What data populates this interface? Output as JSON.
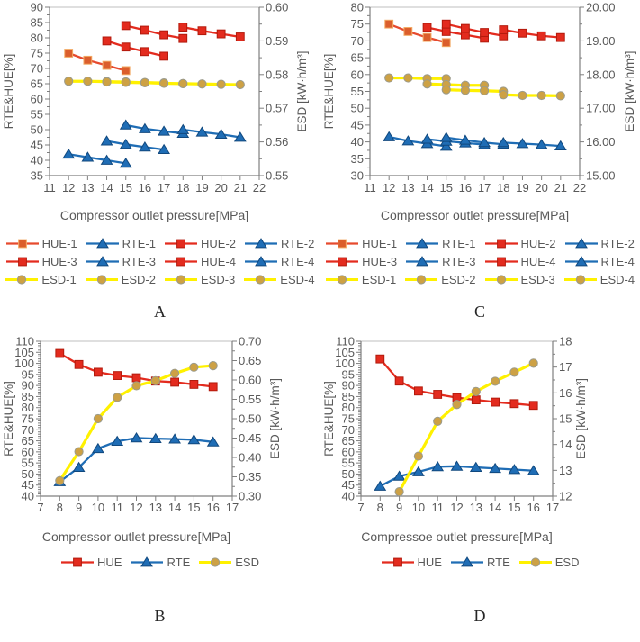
{
  "chart_data": [
    {
      "id": "A",
      "letter": "A",
      "type": "line",
      "layout": "top",
      "xlabel": "Compressor outlet pressure[MPa]",
      "left_ylabel": "RTE&HUE[%]",
      "right_ylabel": "ESD [kW·h/m³]",
      "x_axis": {
        "min": 11,
        "max": 22,
        "step": 1,
        "decimals": 0,
        "minor_divs": 1
      },
      "left_axis": {
        "min": 35,
        "max": 90,
        "step": 5,
        "decimals": 0,
        "minor_divs": 2
      },
      "right_axis": {
        "min": 0.55,
        "max": 0.6,
        "step": 0.01,
        "decimals": 2,
        "minor_divs": 2
      },
      "legend_rows": [
        [
          "HUE-1",
          "RTE-1",
          "HUE-2",
          "RTE-2"
        ],
        [
          "HUE-3",
          "RTE-3",
          "HUE-4",
          "RTE-4"
        ],
        [
          "ESD-1",
          "ESD-2",
          "ESD-3",
          "ESD-4"
        ]
      ],
      "series": [
        {
          "name": "HUE-1",
          "axis": "left",
          "style": "hue1",
          "x": [
            12,
            13,
            14,
            15
          ],
          "y": [
            75,
            72.7,
            71,
            69.3
          ]
        },
        {
          "name": "HUE-2",
          "axis": "left",
          "style": "hue",
          "x": [
            14,
            15,
            16,
            17
          ],
          "y": [
            79,
            77,
            75.5,
            74
          ]
        },
        {
          "name": "HUE-3",
          "axis": "left",
          "style": "hue",
          "x": [
            15,
            16,
            17,
            18
          ],
          "y": [
            84,
            82.5,
            81,
            79.8
          ]
        },
        {
          "name": "HUE-4",
          "axis": "left",
          "style": "hue",
          "x": [
            18,
            19,
            20,
            21
          ],
          "y": [
            83.5,
            82.3,
            81.3,
            80.3
          ]
        },
        {
          "name": "RTE-1",
          "axis": "left",
          "style": "rte",
          "x": [
            12,
            13,
            14,
            15
          ],
          "y": [
            42,
            41,
            40,
            39
          ]
        },
        {
          "name": "RTE-2",
          "axis": "left",
          "style": "rte",
          "x": [
            14,
            15,
            16,
            17
          ],
          "y": [
            46.3,
            45.2,
            44.3,
            43.5
          ]
        },
        {
          "name": "RTE-3",
          "axis": "left",
          "style": "rte",
          "x": [
            15,
            16,
            17,
            18
          ],
          "y": [
            51.5,
            50.3,
            49.5,
            48.8
          ]
        },
        {
          "name": "RTE-4",
          "axis": "left",
          "style": "rte",
          "x": [
            18,
            19,
            20,
            21
          ],
          "y": [
            50,
            49.2,
            48.5,
            47.5
          ]
        },
        {
          "name": "ESD-1",
          "axis": "right",
          "style": "esd",
          "x": [
            12,
            13,
            14,
            15
          ],
          "y": [
            0.578,
            0.578,
            0.5779,
            0.5778
          ]
        },
        {
          "name": "ESD-2",
          "axis": "right",
          "style": "esd",
          "x": [
            14,
            15,
            16,
            17
          ],
          "y": [
            0.5778,
            0.5777,
            0.5776,
            0.5775
          ]
        },
        {
          "name": "ESD-3",
          "axis": "right",
          "style": "esd",
          "x": [
            15,
            16,
            17,
            18
          ],
          "y": [
            0.5777,
            0.5776,
            0.5774,
            0.5773
          ]
        },
        {
          "name": "ESD-4",
          "axis": "right",
          "style": "esd",
          "x": [
            18,
            19,
            20,
            21
          ],
          "y": [
            0.5773,
            0.5772,
            0.5771,
            0.577
          ]
        }
      ]
    },
    {
      "id": "C",
      "letter": "C",
      "type": "line",
      "layout": "top",
      "xlabel": "Compressor outlet pressure[MPa]",
      "left_ylabel": "RTE&HUE[%]",
      "right_ylabel": "ESD [kW·h/m³]",
      "x_axis": {
        "min": 11,
        "max": 22,
        "step": 1,
        "decimals": 0,
        "minor_divs": 1
      },
      "left_axis": {
        "min": 30,
        "max": 80,
        "step": 5,
        "decimals": 0,
        "minor_divs": 2
      },
      "right_axis": {
        "min": 15.0,
        "max": 20.0,
        "step": 1.0,
        "decimals": 2,
        "minor_divs": 2
      },
      "legend_rows": [
        [
          "HUE-1",
          "RTE-1",
          "HUE-2",
          "RTE-2"
        ],
        [
          "HUE-3",
          "RTE-3",
          "HUE-4",
          "RTE-4"
        ],
        [
          "ESD-1",
          "ESD-2",
          "ESD-3",
          "ESD-4"
        ]
      ],
      "series": [
        {
          "name": "HUE-1",
          "axis": "left",
          "style": "hue1",
          "x": [
            12,
            13,
            14,
            15
          ],
          "y": [
            75,
            72.8,
            71,
            69.5
          ]
        },
        {
          "name": "HUE-2",
          "axis": "left",
          "style": "hue",
          "x": [
            14,
            15,
            16,
            17
          ],
          "y": [
            74,
            72.8,
            71.8,
            70.8
          ]
        },
        {
          "name": "HUE-3",
          "axis": "left",
          "style": "hue",
          "x": [
            15,
            16,
            17,
            18
          ],
          "y": [
            75,
            73.7,
            72.5,
            71.5
          ]
        },
        {
          "name": "HUE-4",
          "axis": "left",
          "style": "hue",
          "x": [
            18,
            19,
            20,
            21
          ],
          "y": [
            73.3,
            72.3,
            71.5,
            71
          ]
        },
        {
          "name": "RTE-1",
          "axis": "left",
          "style": "rte",
          "x": [
            12,
            13,
            14,
            15
          ],
          "y": [
            41.5,
            40.3,
            39.5,
            38.7
          ]
        },
        {
          "name": "RTE-2",
          "axis": "left",
          "style": "rte",
          "x": [
            14,
            15,
            16,
            17
          ],
          "y": [
            40.8,
            40.2,
            39.7,
            39.2
          ]
        },
        {
          "name": "RTE-3",
          "axis": "left",
          "style": "rte",
          "x": [
            15,
            16,
            17,
            18
          ],
          "y": [
            41.3,
            40.5,
            39.8,
            39.3
          ]
        },
        {
          "name": "RTE-4",
          "axis": "left",
          "style": "rte",
          "x": [
            18,
            19,
            20,
            21
          ],
          "y": [
            39.8,
            39.5,
            39.2,
            38.8
          ]
        },
        {
          "name": "ESD-1",
          "axis": "right",
          "style": "esd",
          "x": [
            12,
            13,
            14,
            15
          ],
          "y": [
            17.9,
            17.9,
            17.88,
            17.88
          ]
        },
        {
          "name": "ESD-2",
          "axis": "right",
          "style": "esd",
          "x": [
            14,
            15,
            16,
            17
          ],
          "y": [
            17.72,
            17.7,
            17.68,
            17.68
          ]
        },
        {
          "name": "ESD-3",
          "axis": "right",
          "style": "esd",
          "x": [
            15,
            16,
            17,
            18
          ],
          "y": [
            17.55,
            17.53,
            17.52,
            17.5
          ]
        },
        {
          "name": "ESD-4",
          "axis": "right",
          "style": "esd",
          "x": [
            18,
            19,
            20,
            21
          ],
          "y": [
            17.4,
            17.38,
            17.38,
            17.37
          ]
        }
      ]
    },
    {
      "id": "B",
      "letter": "B",
      "type": "line",
      "layout": "bottom",
      "xlabel": "Compressor outlet pressure[MPa]",
      "left_ylabel": "RTE&HUE[%]",
      "right_ylabel": "ESD [kW·h/m³]",
      "x_axis": {
        "min": 7,
        "max": 17,
        "step": 1,
        "decimals": 0,
        "minor_divs": 1
      },
      "left_axis": {
        "min": 40,
        "max": 110,
        "step": 5,
        "decimals": 0,
        "minor_divs": 5
      },
      "right_axis": {
        "min": 0.3,
        "max": 0.7,
        "step": 0.05,
        "decimals": 2,
        "minor_divs": 2
      },
      "legend_rows": [
        [
          "HUE",
          "RTE",
          "ESD"
        ]
      ],
      "series": [
        {
          "name": "HUE",
          "axis": "left",
          "style": "hue",
          "x": [
            8,
            9,
            10,
            11,
            12,
            13,
            14,
            15,
            16
          ],
          "y": [
            104.5,
            99.5,
            96,
            94.5,
            93.5,
            92,
            91.5,
            90.5,
            89.5
          ]
        },
        {
          "name": "RTE",
          "axis": "left",
          "style": "rte",
          "x": [
            8,
            9,
            10,
            11,
            12,
            13,
            14,
            15,
            16
          ],
          "y": [
            46.5,
            53,
            61.5,
            64.8,
            66.3,
            66,
            65.8,
            65.5,
            64.5
          ]
        },
        {
          "name": "ESD",
          "axis": "right",
          "style": "esd",
          "x": [
            8,
            9,
            10,
            11,
            12,
            13,
            14,
            15,
            16
          ],
          "y": [
            0.34,
            0.415,
            0.5,
            0.555,
            0.585,
            0.598,
            0.617,
            0.633,
            0.637
          ]
        }
      ]
    },
    {
      "id": "D",
      "letter": "D",
      "type": "line",
      "layout": "bottom",
      "xlabel": "Compressoe outlet pressure[MPa]",
      "left_ylabel": "RTE&HUE[%]",
      "right_ylabel": "ESD [kW·h/m³]",
      "x_axis": {
        "min": 7,
        "max": 17,
        "step": 1,
        "decimals": 0,
        "minor_divs": 1
      },
      "left_axis": {
        "min": 40,
        "max": 110,
        "step": 5,
        "decimals": 0,
        "minor_divs": 5
      },
      "right_axis": {
        "min": 12,
        "max": 18,
        "step": 1,
        "decimals": 0,
        "minor_divs": 2
      },
      "legend_rows": [
        [
          "HUE",
          "RTE",
          "ESD"
        ]
      ],
      "series": [
        {
          "name": "HUE",
          "axis": "left",
          "style": "hue",
          "x": [
            8,
            9,
            10,
            11,
            12,
            13,
            14,
            15,
            16
          ],
          "y": [
            102,
            92,
            87.5,
            86,
            84.5,
            83.5,
            82.5,
            81.8,
            81
          ]
        },
        {
          "name": "RTE",
          "axis": "left",
          "style": "rte",
          "x": [
            8,
            9,
            10,
            11,
            12,
            13,
            14,
            15,
            16
          ],
          "y": [
            44.5,
            49,
            51,
            53.3,
            53.5,
            53,
            52.5,
            52,
            51.5
          ]
        },
        {
          "name": "ESD",
          "axis": "right",
          "style": "esd",
          "x": [
            9,
            10,
            11,
            12,
            13,
            14,
            15,
            16
          ],
          "y": [
            12.17,
            13.55,
            14.9,
            15.55,
            16.05,
            16.45,
            16.8,
            17.15
          ]
        }
      ]
    }
  ],
  "series_styles": {
    "hue1": {
      "marker": "square",
      "line": "#E64A2E",
      "fill": "#DB5E2C",
      "stroke": "#F2A963"
    },
    "hue": {
      "marker": "square",
      "line": "#E32B1E",
      "fill": "#E32B1E",
      "stroke": "#B21A0C"
    },
    "rte": {
      "marker": "triangle",
      "line": "#1F6DB5",
      "fill": "#1F6DB5",
      "stroke": "#10487E"
    },
    "esd": {
      "marker": "circle",
      "line": "#FFF100",
      "fill": "#CDA145",
      "stroke": "#9B9B8C"
    }
  },
  "colors": {
    "axis_line": "#7F7F7F",
    "plot_border": "#BFBFBF",
    "tick_text": "#595959",
    "background": "#FFFFFF"
  }
}
